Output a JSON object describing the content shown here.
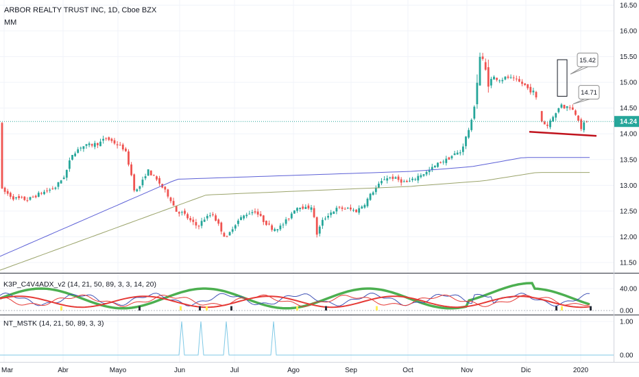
{
  "header": {
    "symbol_line": "ARBOR REALTY TRUST INC, 1D, Cboe BZX",
    "study_line": "MM"
  },
  "price_axis_labels": [
    "16.50",
    "16.00",
    "15.50",
    "15.00",
    "14.50",
    "14.00",
    "13.50",
    "13.00",
    "12.50",
    "12.00",
    "11.50"
  ],
  "time_axis_labels": [
    "Mar",
    "Abr",
    "Mayo",
    "Jun",
    "Jul",
    "Ago",
    "Sep",
    "Oct",
    "Nov",
    "Dic",
    "2020"
  ],
  "last_price_tag": "14.24",
  "callouts": [
    "15.42",
    "14.71"
  ],
  "indicator1": {
    "title": "K3P_C4V4ADX_v2 (14, 21, 50, 89, 3, 3, 14, 20)",
    "axis_labels": [
      "40.00",
      "0.00"
    ]
  },
  "indicator2": {
    "title": "NT_MSTK (14, 21, 50, 89, 3, 3)",
    "axis_labels": [
      "1.00",
      "0.00"
    ]
  },
  "colors": {
    "up": "#26a69a",
    "down": "#ef5350",
    "ma_fast": "#5b5fd6",
    "ma_slow": "#9aa36a",
    "support": "#c0121c",
    "adx_green": "#4caf50",
    "adx_red": "#e53935",
    "adx_blue": "#3f51b5",
    "mstk": "#7fc9e6",
    "price_tag": "#26a69a"
  },
  "chart_data": [
    {
      "type": "candlestick",
      "ylim": [
        11.3,
        16.6
      ],
      "x_ticks": [
        "Mar",
        "Abr",
        "Mayo",
        "Jun",
        "Jul",
        "Ago",
        "Sep",
        "Oct",
        "Nov",
        "Dic",
        "2020"
      ],
      "last_value": 14.24,
      "support_line": [
        14.04,
        13.96
      ],
      "callout_values": [
        15.42,
        14.71
      ],
      "ma_fast_endpoints": [
        11.62,
        13.54
      ],
      "ma_slow_endpoints": [
        11.35,
        13.25
      ]
    },
    {
      "type": "line",
      "name": "K3P_C4V4ADX_v2",
      "ylim": [
        0,
        60
      ],
      "y_ticks": [
        40,
        0
      ]
    },
    {
      "type": "line",
      "name": "NT_MSTK",
      "ylim": [
        0,
        1
      ],
      "y_ticks": [
        1,
        0
      ],
      "spikes": 4
    }
  ]
}
